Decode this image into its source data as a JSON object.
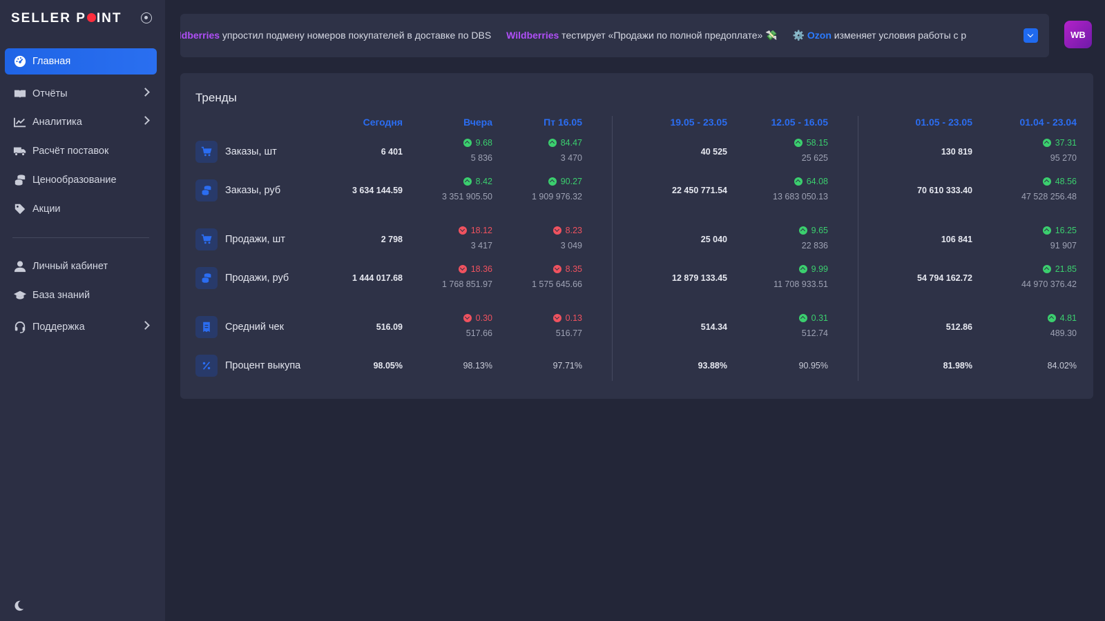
{
  "brand": {
    "left": "SELLER P",
    "right": "INT"
  },
  "sidebar": {
    "items": [
      {
        "label": "Главная",
        "icon": "dashboard-icon",
        "active": true,
        "chevron": false
      },
      {
        "label": "Отчёты",
        "icon": "book-icon",
        "chevron": true
      },
      {
        "label": "Аналитика",
        "icon": "chart-line-icon",
        "chevron": true
      },
      {
        "label": "Расчёт поставок",
        "icon": "truck-icon",
        "chevron": false
      },
      {
        "label": "Ценообразование",
        "icon": "coins-icon",
        "chevron": false
      },
      {
        "label": "Акции",
        "icon": "tags-icon",
        "chevron": false
      },
      {
        "label": "Личный кабинет",
        "icon": "user-icon",
        "chevron": false
      },
      {
        "label": "База знаний",
        "icon": "graduation-cap-icon",
        "chevron": false
      },
      {
        "label": "Поддержка",
        "icon": "headset-icon",
        "chevron": true
      }
    ]
  },
  "ticker": {
    "items": [
      {
        "brand": "ildberries",
        "brand_color": "#b04ff7",
        "text": " упростил подмену номеров покупателей в доставке по DBS",
        "prefix": ""
      },
      {
        "brand": "Wildberries",
        "brand_color": "#b04ff7",
        "text": " тестирует «Продажи по полной предоплате» 💸",
        "prefix": ""
      },
      {
        "brand": "Ozon",
        "brand_color": "#2b7bff",
        "text": " изменяет условия работы с р",
        "prefix": "⚙️ "
      }
    ]
  },
  "avatar": "WB",
  "trends": {
    "title": "Тренды",
    "columns": [
      "Сегодня",
      "Вчера",
      "Пт 16.05",
      "19.05 - 23.05",
      "12.05 - 16.05",
      "01.05 - 23.05",
      "01.04 - 23.04"
    ],
    "rows": [
      {
        "label": "Заказы, шт",
        "icon": "cart-icon",
        "cells": [
          {
            "value": "6 401"
          },
          {
            "delta": "9.68",
            "dir": "up",
            "sub": "5 836"
          },
          {
            "delta": "84.47",
            "dir": "up",
            "sub": "3 470"
          },
          {
            "value": "40 525"
          },
          {
            "delta": "58.15",
            "dir": "up",
            "sub": "25 625"
          },
          {
            "value": "130 819"
          },
          {
            "delta": "37.31",
            "dir": "up",
            "sub": "95 270"
          }
        ]
      },
      {
        "label": "Заказы, руб",
        "icon": "coins-icon",
        "cells": [
          {
            "value": "3 634 144.59"
          },
          {
            "delta": "8.42",
            "dir": "up",
            "sub": "3 351 905.50"
          },
          {
            "delta": "90.27",
            "dir": "up",
            "sub": "1 909 976.32"
          },
          {
            "value": "22 450 771.54"
          },
          {
            "delta": "64.08",
            "dir": "up",
            "sub": "13 683 050.13"
          },
          {
            "value": "70 610 333.40"
          },
          {
            "delta": "48.56",
            "dir": "up",
            "sub": "47 528 256.48"
          }
        ]
      },
      {
        "label": "Продажи, шт",
        "icon": "cart-icon",
        "cells": [
          {
            "value": "2 798"
          },
          {
            "delta": "18.12",
            "dir": "down",
            "sub": "3 417"
          },
          {
            "delta": "8.23",
            "dir": "down",
            "sub": "3 049"
          },
          {
            "value": "25 040"
          },
          {
            "delta": "9.65",
            "dir": "up",
            "sub": "22 836"
          },
          {
            "value": "106 841"
          },
          {
            "delta": "16.25",
            "dir": "up",
            "sub": "91 907"
          }
        ]
      },
      {
        "label": "Продажи, руб",
        "icon": "coins-icon",
        "cells": [
          {
            "value": "1 444 017.68"
          },
          {
            "delta": "18.36",
            "dir": "down",
            "sub": "1 768 851.97"
          },
          {
            "delta": "8.35",
            "dir": "down",
            "sub": "1 575 645.66"
          },
          {
            "value": "12 879 133.45"
          },
          {
            "delta": "9.99",
            "dir": "up",
            "sub": "11 708 933.51"
          },
          {
            "value": "54 794 162.72"
          },
          {
            "delta": "21.85",
            "dir": "up",
            "sub": "44 970 376.42"
          }
        ]
      },
      {
        "label": "Средний чек",
        "icon": "receipt-icon",
        "cells": [
          {
            "value": "516.09"
          },
          {
            "delta": "0.30",
            "dir": "down",
            "sub": "517.66"
          },
          {
            "delta": "0.13",
            "dir": "down",
            "sub": "516.77"
          },
          {
            "value": "514.34"
          },
          {
            "delta": "0.31",
            "dir": "up",
            "sub": "512.74"
          },
          {
            "value": "512.86"
          },
          {
            "delta": "4.81",
            "dir": "up",
            "sub": "489.30"
          }
        ]
      },
      {
        "label": "Процент выкупа",
        "icon": "percent-icon",
        "cells": [
          {
            "value": "98.05%"
          },
          {
            "plain": "98.13%"
          },
          {
            "plain": "97.71%"
          },
          {
            "value": "93.88%"
          },
          {
            "plain": "90.95%"
          },
          {
            "value": "81.98%"
          },
          {
            "plain": "84.02%"
          }
        ]
      }
    ]
  }
}
